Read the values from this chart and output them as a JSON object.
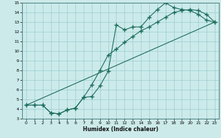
{
  "xlabel": "Humidex (Indice chaleur)",
  "bg_color": "#cceaea",
  "line_color": "#1a6b5a",
  "grid_color": "#99cccc",
  "xlim": [
    -0.5,
    23.5
  ],
  "ylim": [
    3,
    15
  ],
  "xticks": [
    0,
    1,
    2,
    3,
    4,
    5,
    6,
    7,
    8,
    9,
    10,
    11,
    12,
    13,
    14,
    15,
    16,
    17,
    18,
    19,
    20,
    21,
    22,
    23
  ],
  "yticks": [
    3,
    4,
    5,
    6,
    7,
    8,
    9,
    10,
    11,
    12,
    13,
    14,
    15
  ],
  "line1_x": [
    0,
    1,
    2,
    3,
    4,
    5,
    6,
    7,
    8,
    9,
    10,
    11,
    12,
    13,
    14,
    15,
    16,
    17,
    18,
    19,
    20,
    21,
    22,
    23
  ],
  "line1_y": [
    4.4,
    4.4,
    4.4,
    3.6,
    3.5,
    3.9,
    4.1,
    5.2,
    6.5,
    8.0,
    9.6,
    10.2,
    10.9,
    11.5,
    12.1,
    12.5,
    13.0,
    13.5,
    14.0,
    14.2,
    14.3,
    14.2,
    13.8,
    13.0
  ],
  "line2_x": [
    0,
    1,
    2,
    3,
    4,
    5,
    6,
    7,
    8,
    9,
    10,
    11,
    12,
    13,
    14,
    15,
    16,
    17,
    18,
    19,
    20,
    21,
    22,
    23
  ],
  "line2_y": [
    4.4,
    4.4,
    4.4,
    3.6,
    3.5,
    3.9,
    4.1,
    5.2,
    5.3,
    6.4,
    7.9,
    12.7,
    12.2,
    12.5,
    12.5,
    13.5,
    14.3,
    15.0,
    14.5,
    14.3,
    14.2,
    13.8,
    13.2,
    13.0
  ],
  "line3_x": [
    0,
    23
  ],
  "line3_y": [
    4.4,
    13.0
  ]
}
